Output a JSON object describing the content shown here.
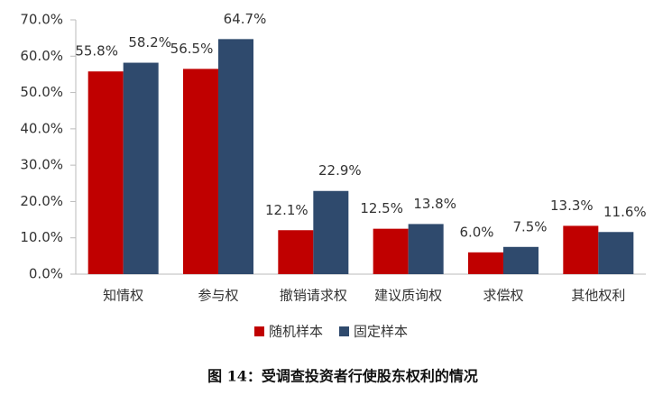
{
  "chart_data": {
    "type": "bar",
    "caption": "图 14：受调查投资者行使股东权利的情况",
    "categories": [
      "知情权",
      "参与权",
      "撤销请求权",
      "建议质询权",
      "求偿权",
      "其他权利"
    ],
    "series": [
      {
        "name": "随机样本",
        "color": "#c00000",
        "values": [
          55.8,
          56.5,
          12.1,
          12.5,
          6.0,
          13.3
        ],
        "value_labels": [
          "55.8%",
          "56.5%",
          "12.1%",
          "12.5%",
          "6.0%",
          "13.3%"
        ]
      },
      {
        "name": "固定样本",
        "color": "#2f4a6d",
        "values": [
          58.2,
          64.7,
          22.9,
          13.8,
          7.5,
          11.6
        ],
        "value_labels": [
          "58.2%",
          "64.7%",
          "22.9%",
          "13.8%",
          "7.5%",
          "11.6%"
        ]
      }
    ],
    "ylim": [
      0,
      70
    ],
    "yticks": [
      {
        "value": 0,
        "label": "0.0%"
      },
      {
        "value": 10,
        "label": "10.0%"
      },
      {
        "value": 20,
        "label": "20.0%"
      },
      {
        "value": 30,
        "label": "30.0%"
      },
      {
        "value": 40,
        "label": "40.0%"
      },
      {
        "value": 50,
        "label": "50.0%"
      },
      {
        "value": 60,
        "label": "60.0%"
      },
      {
        "value": 70,
        "label": "70.0%"
      }
    ],
    "grid": false
  }
}
